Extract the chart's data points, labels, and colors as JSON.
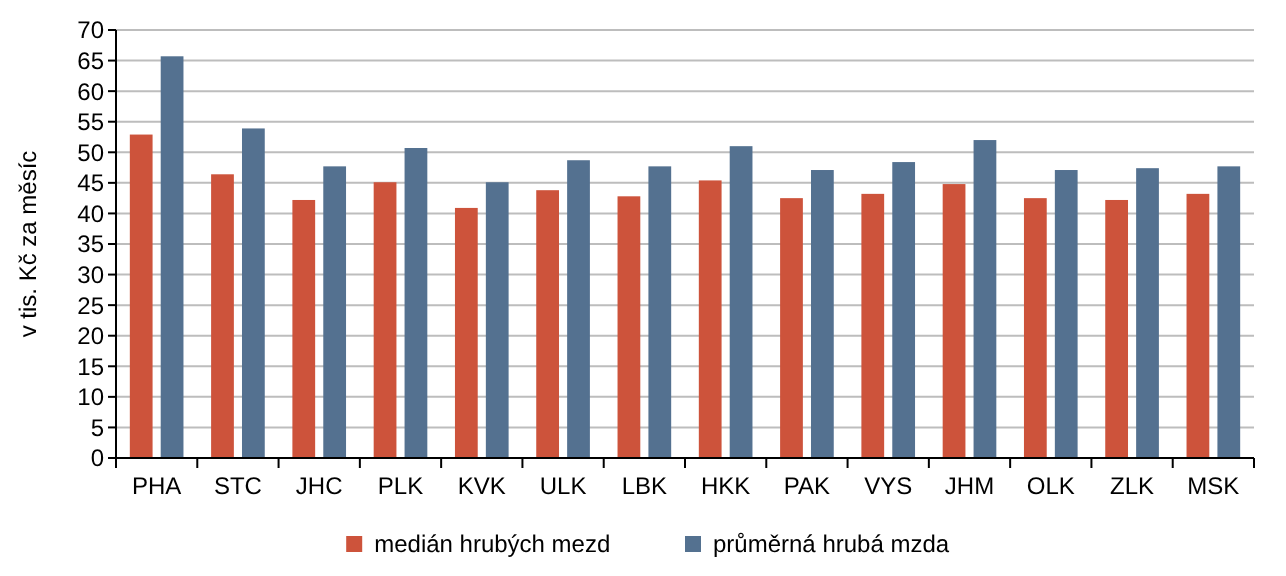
{
  "chart_data": {
    "type": "bar",
    "ylabel": "v tis. Kč za měsíc",
    "categories": [
      "PHA",
      "STC",
      "JHC",
      "PLK",
      "KVK",
      "ULK",
      "LBK",
      "HKK",
      "PAK",
      "VYS",
      "JHM",
      "OLK",
      "ZLK",
      "MSK"
    ],
    "series": [
      {
        "name": "medián hrubých mezd",
        "color": "#cd533b",
        "values": [
          52.9,
          46.4,
          42.2,
          45.1,
          40.9,
          43.8,
          42.8,
          45.4,
          42.5,
          43.2,
          44.8,
          42.5,
          42.2,
          43.2
        ]
      },
      {
        "name": "průměrná hrubá mzda",
        "color": "#547190",
        "values": [
          65.7,
          53.9,
          47.7,
          50.7,
          45.1,
          48.7,
          47.7,
          51.0,
          47.1,
          48.4,
          52.0,
          47.1,
          47.4,
          47.7
        ]
      }
    ],
    "ylim": [
      0,
      70
    ],
    "yticks": [
      0,
      5,
      10,
      15,
      20,
      25,
      30,
      35,
      40,
      45,
      50,
      55,
      60,
      65,
      70
    ],
    "grid": "y",
    "legend": "bottom"
  }
}
